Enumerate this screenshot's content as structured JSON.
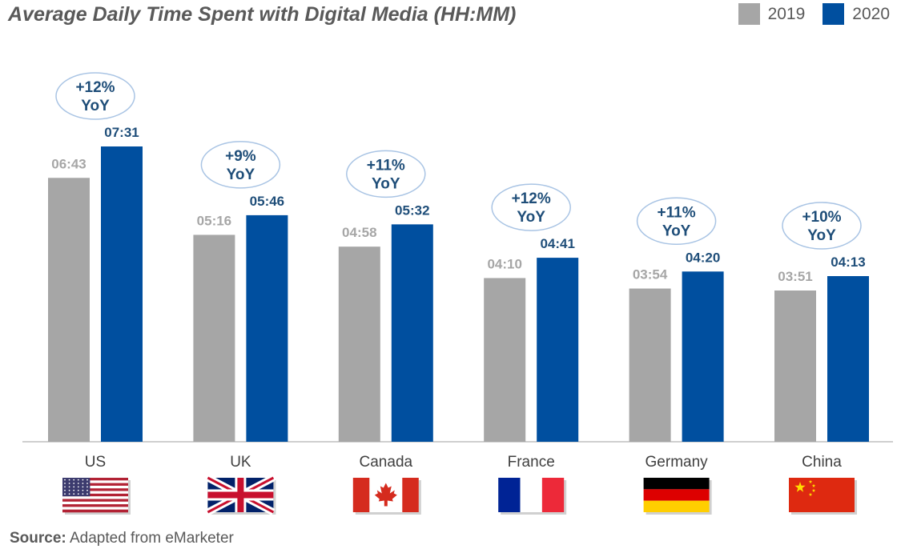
{
  "chart_data": {
    "type": "bar",
    "title": "Average Daily Time Spent with Digital Media (HH:MM)",
    "categories": [
      "US",
      "UK",
      "Canada",
      "France",
      "Germany",
      "China"
    ],
    "series": [
      {
        "name": "2019",
        "color": "#a6a6a6",
        "label_color": "#a6a6a6",
        "values": [
          "06:43",
          "05:16",
          "04:58",
          "04:10",
          "03:54",
          "03:51"
        ]
      },
      {
        "name": "2020",
        "color": "#004f9f",
        "label_color": "#1f4e79",
        "values": [
          "07:31",
          "05:46",
          "05:32",
          "04:41",
          "04:20",
          "04:13"
        ]
      }
    ],
    "annotations": [
      [
        "+12%",
        "YoY"
      ],
      [
        "+9%",
        "YoY"
      ],
      [
        "+11%",
        "YoY"
      ],
      [
        "+12%",
        "YoY"
      ],
      [
        "+11%",
        "YoY"
      ],
      [
        "+10%",
        "YoY"
      ]
    ],
    "flags": [
      "us-flag",
      "uk-flag",
      "canada-flag",
      "france-flag",
      "germany-flag",
      "china-flag"
    ],
    "ylim": [
      "00:00",
      "07:31"
    ],
    "grid": false,
    "legend_position": "top-right"
  },
  "source": {
    "label": "Source:",
    "text": " Adapted from eMarketer"
  }
}
